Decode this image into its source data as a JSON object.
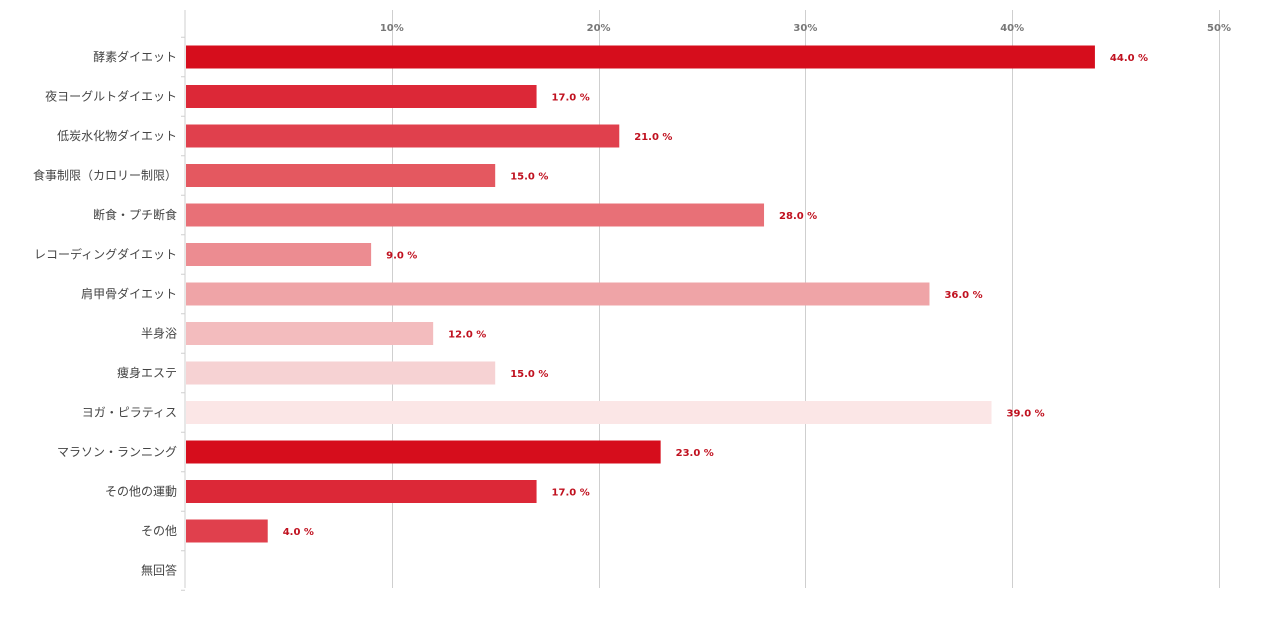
{
  "chart_data": {
    "type": "bar",
    "orientation": "horizontal",
    "categories": [
      "酵素ダイエット",
      "夜ヨーグルトダイエット",
      "低炭水化物ダイエット",
      "食事制限（カロリー制限）",
      "断食・プチ断食",
      "レコーディングダイエット",
      "肩甲骨ダイエット",
      "半身浴",
      "痩身エステ",
      "ヨガ・ピラティス",
      "マラソン・ランニング",
      "その他の運動",
      "その他",
      "無回答"
    ],
    "values": [
      44.0,
      17.0,
      21.0,
      15.0,
      28.0,
      9.0,
      36.0,
      12.0,
      15.0,
      39.0,
      23.0,
      17.0,
      4.0,
      0
    ],
    "value_labels": [
      "44.0 %",
      "17.0 %",
      "21.0 %",
      "15.0 %",
      "28.0 %",
      "9.0 %",
      "36.0 %",
      "12.0 %",
      "15.0 %",
      "39.0 %",
      "23.0 %",
      "17.0 %",
      "4.0 %",
      ""
    ],
    "bar_colors": [
      "#d60d1c",
      "#dc2837",
      "#e0404d",
      "#e45860",
      "#e87077",
      "#ec8c91",
      "#efa4a7",
      "#f3bcbe",
      "#f6d2d3",
      "#fbe6e6",
      "#d60d1c",
      "#dc2837",
      "#e0404d",
      "#e45860"
    ],
    "x_ticks": [
      10,
      20,
      30,
      40,
      50
    ],
    "x_tick_labels": [
      "10%",
      "20%",
      "30%",
      "40%",
      "50%"
    ],
    "xlim": [
      0,
      50
    ],
    "grid": true,
    "legend": "none",
    "title": "",
    "xlabel": "",
    "ylabel": ""
  },
  "colors": {
    "value_label": "#c0111f",
    "category_label": "#444444",
    "tick_label": "#777777",
    "grid": "#cfcfcf"
  }
}
